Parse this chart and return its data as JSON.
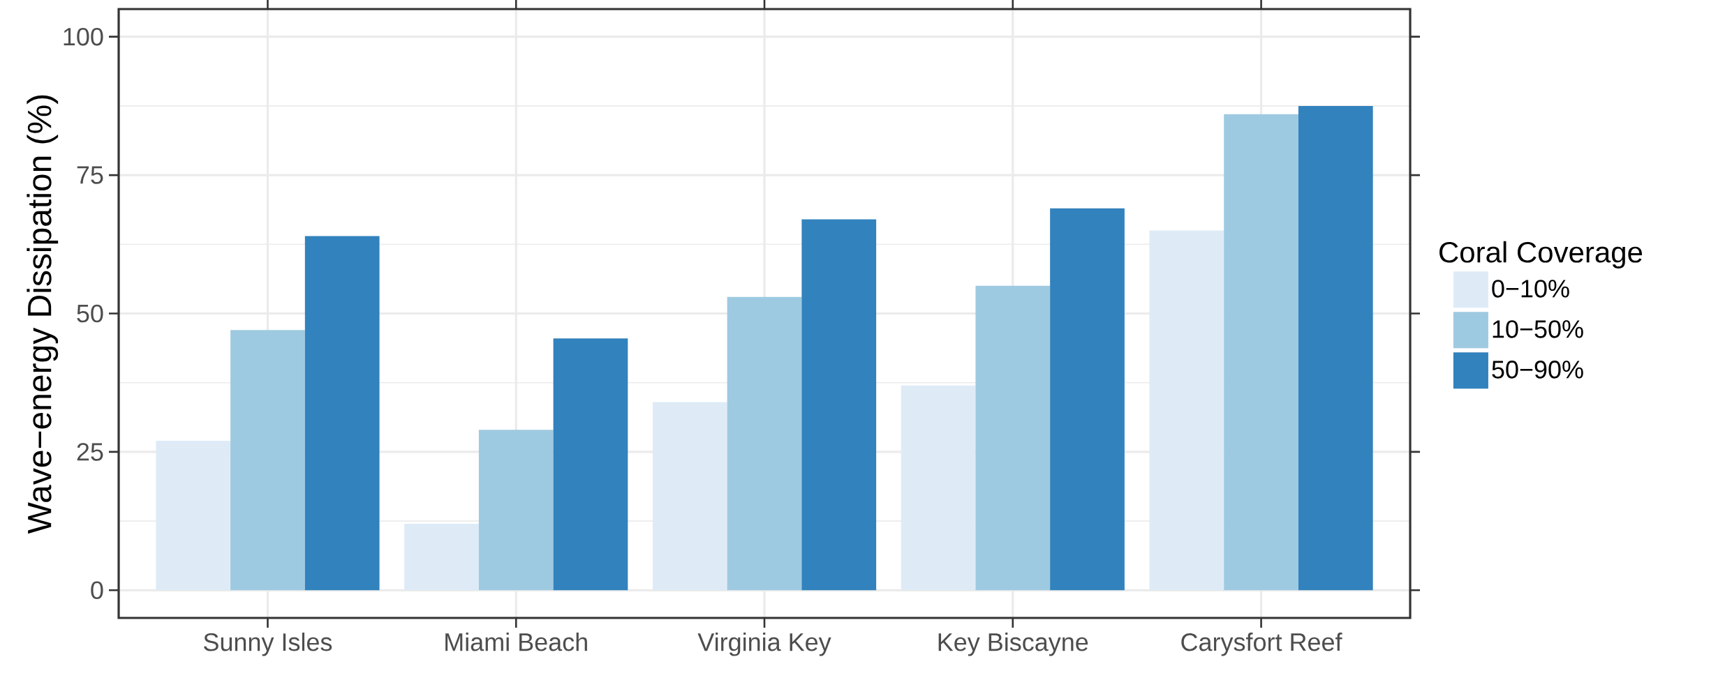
{
  "chart_data": {
    "type": "bar",
    "ylabel": "Wave−energy Dissipation (%)",
    "legend_title": "Coral Coverage",
    "categories": [
      "Sunny Isles",
      "Miami Beach",
      "Virginia Key",
      "Key Biscayne",
      "Carysfort Reef"
    ],
    "series": [
      {
        "name": "0−10%",
        "color": "#deebf7",
        "values": [
          27,
          12,
          34,
          37,
          65
        ]
      },
      {
        "name": "10−50%",
        "color": "#9ecae1",
        "values": [
          47,
          29,
          53,
          55,
          86
        ]
      },
      {
        "name": "50−90%",
        "color": "#3182bd",
        "values": [
          64,
          45.5,
          67,
          69,
          87.5
        ]
      }
    ],
    "ylim": [
      -5,
      105
    ],
    "yticks": [
      0,
      25,
      50,
      75,
      100
    ],
    "grid": true,
    "legend": "right"
  }
}
